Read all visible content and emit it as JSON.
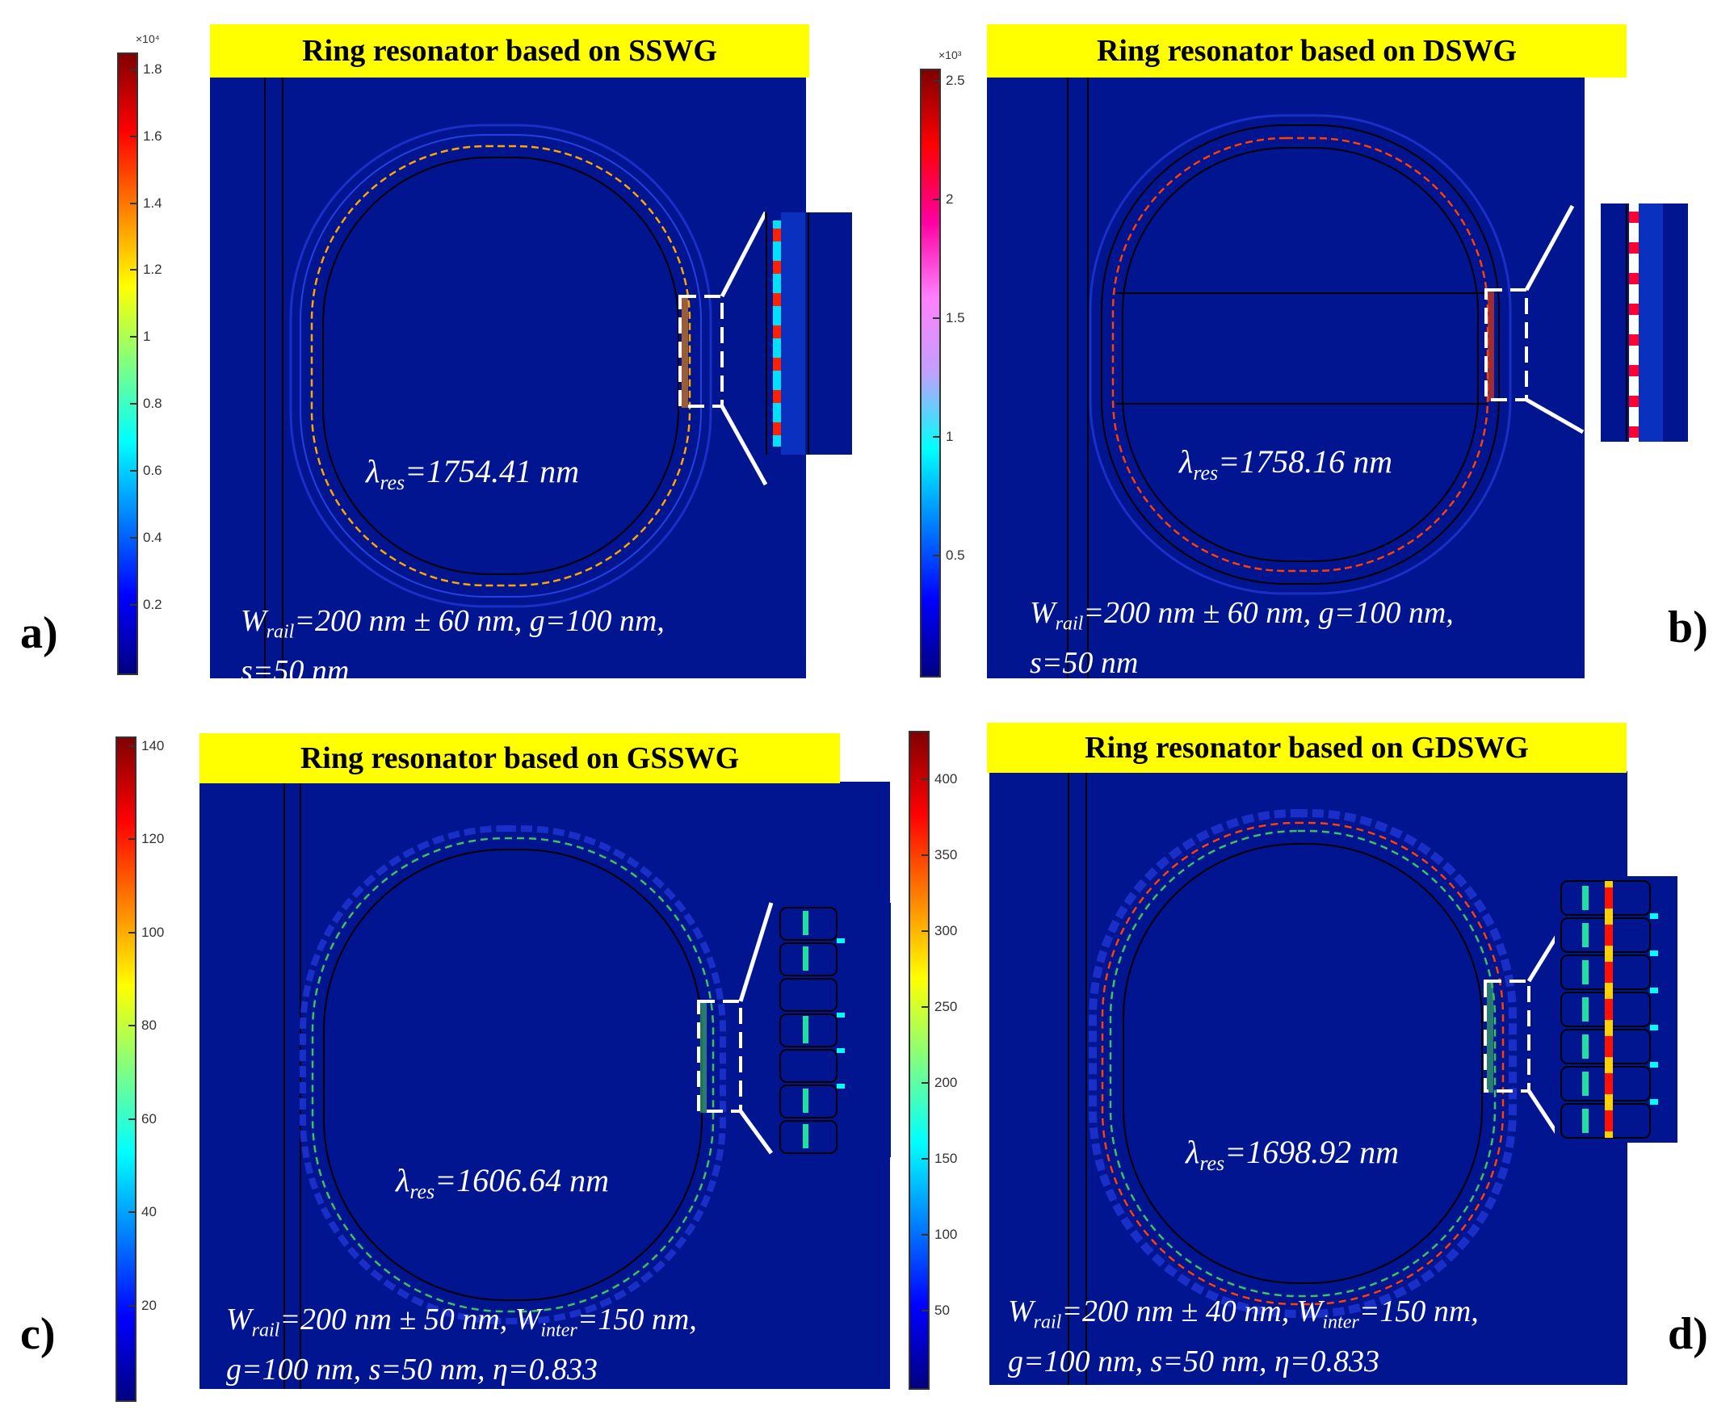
{
  "panels": [
    {
      "label": "a)",
      "title": "Ring resonator based on SSWG",
      "lambda_value": "=1754.41 nm",
      "params_line1": "=200 nm ± 60 nm, g=100 nm,",
      "params_line2": "s=50 nm",
      "colorbar": {
        "exponent": "×10⁴",
        "ticks": [
          "1.8",
          "1.6",
          "1.4",
          "1.2",
          "1",
          "0.8",
          "0.6",
          "0.4",
          "0.2"
        ],
        "max": 1.85,
        "min": 0
      }
    },
    {
      "label": "b)",
      "title": "Ring resonator based on DSWG",
      "lambda_value": "=1758.16 nm",
      "params_line1": "=200 nm ± 60 nm, g=100 nm,",
      "params_line2": "s=50 nm",
      "colorbar": {
        "exponent": "×10³",
        "ticks": [
          "2.5",
          "2",
          "1.5",
          "1",
          "0.5"
        ],
        "max": 2.55,
        "min": 0
      }
    },
    {
      "label": "c)",
      "title": "Ring resonator based on GSSWG",
      "lambda_value": "=1606.64 nm",
      "params_line1a": "=200 nm ± 50 nm, W",
      "params_line1b": "=150 nm,",
      "params_line2": "g=100 nm, s=50 nm, η=0.833",
      "colorbar": {
        "exponent": "",
        "ticks": [
          "140",
          "120",
          "100",
          "80",
          "60",
          "40",
          "20"
        ],
        "max": 142,
        "min": 0
      }
    },
    {
      "label": "d)",
      "title": "Ring resonator based on GDSWG",
      "lambda_value": "=1698.92 nm",
      "params_line1a": "=200 nm ± 40 nm, W",
      "params_line1b": "=150 nm,",
      "params_line2": "g=100 nm, s=50 nm, η=0.833",
      "colorbar": {
        "exponent": "",
        "ticks": [
          "400",
          "350",
          "300",
          "250",
          "200",
          "150",
          "100",
          "50"
        ],
        "max": 432,
        "min": 0
      }
    }
  ],
  "symbols": {
    "lambda": "λ",
    "res": "res",
    "w": "W",
    "rail": "rail",
    "inter": "inter"
  },
  "colors": {
    "field_background": "#00158f",
    "banner": "#ffff00"
  }
}
